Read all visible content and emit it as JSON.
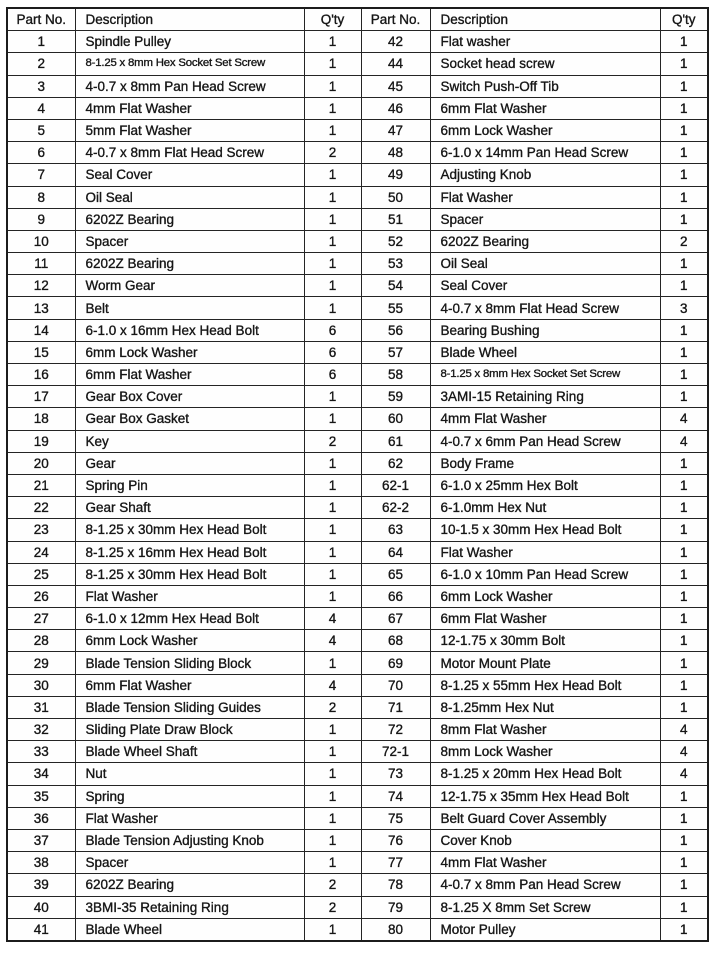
{
  "table": {
    "columns": [
      "Part No.",
      "Description",
      "Q'ty"
    ],
    "left_rows": [
      [
        "1",
        "Spindle Pulley",
        "1"
      ],
      [
        "2",
        "8-1.25 x 8mm Hex Socket Set Screw",
        "1"
      ],
      [
        "3",
        "4-0.7 x 8mm Pan Head Screw",
        "1"
      ],
      [
        "4",
        "4mm Flat Washer",
        "1"
      ],
      [
        "5",
        "5mm Flat Washer",
        "1"
      ],
      [
        "6",
        "4-0.7 x 8mm Flat Head Screw",
        "2"
      ],
      [
        "7",
        "Seal Cover",
        "1"
      ],
      [
        "8",
        "Oil Seal",
        "1"
      ],
      [
        "9",
        "6202Z Bearing",
        "1"
      ],
      [
        "10",
        "Spacer",
        "1"
      ],
      [
        "11",
        "6202Z Bearing",
        "1"
      ],
      [
        "12",
        "Worm Gear",
        "1"
      ],
      [
        "13",
        "Belt",
        "1"
      ],
      [
        "14",
        "6-1.0 x 16mm Hex Head Bolt",
        "6"
      ],
      [
        "15",
        "6mm Lock Washer",
        "6"
      ],
      [
        "16",
        "6mm Flat Washer",
        "6"
      ],
      [
        "17",
        "Gear Box Cover",
        "1"
      ],
      [
        "18",
        "Gear Box Gasket",
        "1"
      ],
      [
        "19",
        "Key",
        "2"
      ],
      [
        "20",
        "Gear",
        "1"
      ],
      [
        "21",
        "Spring Pin",
        "1"
      ],
      [
        "22",
        "Gear Shaft",
        "1"
      ],
      [
        "23",
        "8-1.25 x 30mm Hex Head Bolt",
        "1"
      ],
      [
        "24",
        "8-1.25 x 16mm Hex Head Bolt",
        "1"
      ],
      [
        "25",
        "8-1.25 x 30mm Hex Head Bolt",
        "1"
      ],
      [
        "26",
        "Flat Washer",
        "1"
      ],
      [
        "27",
        "6-1.0 x 12mm Hex Head Bolt",
        "4"
      ],
      [
        "28",
        "6mm Lock Washer",
        "4"
      ],
      [
        "29",
        "Blade Tension Sliding Block",
        "1"
      ],
      [
        "30",
        "6mm Flat Washer",
        "4"
      ],
      [
        "31",
        "Blade Tension Sliding Guides",
        "2"
      ],
      [
        "32",
        "Sliding Plate Draw Block",
        "1"
      ],
      [
        "33",
        "Blade Wheel Shaft",
        "1"
      ],
      [
        "34",
        "Nut",
        "1"
      ],
      [
        "35",
        "Spring",
        "1"
      ],
      [
        "36",
        "Flat Washer",
        "1"
      ],
      [
        "37",
        "Blade Tension Adjusting Knob",
        "1"
      ],
      [
        "38",
        "Spacer",
        "1"
      ],
      [
        "39",
        "6202Z Bearing",
        "2"
      ],
      [
        "40",
        "3BMI-35 Retaining Ring",
        "2"
      ],
      [
        "41",
        "Blade Wheel",
        "1"
      ]
    ],
    "right_rows": [
      [
        "42",
        "Flat washer",
        "1"
      ],
      [
        "44",
        "Socket head screw",
        "1"
      ],
      [
        "45",
        "Switch Push-Off Tib",
        "1"
      ],
      [
        "46",
        "6mm Flat Washer",
        "1"
      ],
      [
        "47",
        "6mm Lock Washer",
        "1"
      ],
      [
        "48",
        "6-1.0 x 14mm Pan Head Screw",
        "1"
      ],
      [
        "49",
        "Adjusting Knob",
        "1"
      ],
      [
        "50",
        "Flat Washer",
        "1"
      ],
      [
        "51",
        "Spacer",
        "1"
      ],
      [
        "52",
        "6202Z Bearing",
        "2"
      ],
      [
        "53",
        "Oil Seal",
        "1"
      ],
      [
        "54",
        "Seal Cover",
        "1"
      ],
      [
        "55",
        "4-0.7 x 8mm Flat Head Screw",
        "3"
      ],
      [
        "56",
        "Bearing Bushing",
        "1"
      ],
      [
        "57",
        "Blade Wheel",
        "1"
      ],
      [
        "58",
        "8-1.25 x 8mm Hex Socket Set Screw",
        "1"
      ],
      [
        "59",
        "3AMI-15 Retaining Ring",
        "1"
      ],
      [
        "60",
        "4mm Flat Washer",
        "4"
      ],
      [
        "61",
        "4-0.7 x 6mm Pan Head Screw",
        "4"
      ],
      [
        "62",
        "Body Frame",
        "1"
      ],
      [
        "62-1",
        "6-1.0 x 25mm Hex Bolt",
        "1"
      ],
      [
        "62-2",
        "6-1.0mm Hex Nut",
        "1"
      ],
      [
        "63",
        "10-1.5 x 30mm Hex Head Bolt",
        "1"
      ],
      [
        "64",
        "Flat Washer",
        "1"
      ],
      [
        "65",
        "6-1.0 x 10mm Pan Head Screw",
        "1"
      ],
      [
        "66",
        "6mm Lock Washer",
        "1"
      ],
      [
        "67",
        "6mm Flat Washer",
        "1"
      ],
      [
        "68",
        "12-1.75 x 30mm Bolt",
        "1"
      ],
      [
        "69",
        "Motor Mount Plate",
        "1"
      ],
      [
        "70",
        "8-1.25 x 55mm Hex Head Bolt",
        "1"
      ],
      [
        "71",
        "8-1.25mm Hex Nut",
        "1"
      ],
      [
        "72",
        "8mm Flat Washer",
        "4"
      ],
      [
        "72-1",
        "8mm Lock Washer",
        "4"
      ],
      [
        "73",
        "8-1.25 x 20mm Hex Head Bolt",
        "4"
      ],
      [
        "74",
        "12-1.75 x 35mm Hex Head Bolt",
        "1"
      ],
      [
        "75",
        "Belt Guard Cover Assembly",
        "1"
      ],
      [
        "76",
        "Cover Knob",
        "1"
      ],
      [
        "77",
        "4mm Flat Washer",
        "1"
      ],
      [
        "78",
        "4-0.7 x 8mm Pan Head Screw",
        "1"
      ],
      [
        "79",
        "8-1.25 X 8mm Set Screw",
        "1"
      ],
      [
        "80",
        "Motor Pulley",
        "1"
      ]
    ]
  }
}
